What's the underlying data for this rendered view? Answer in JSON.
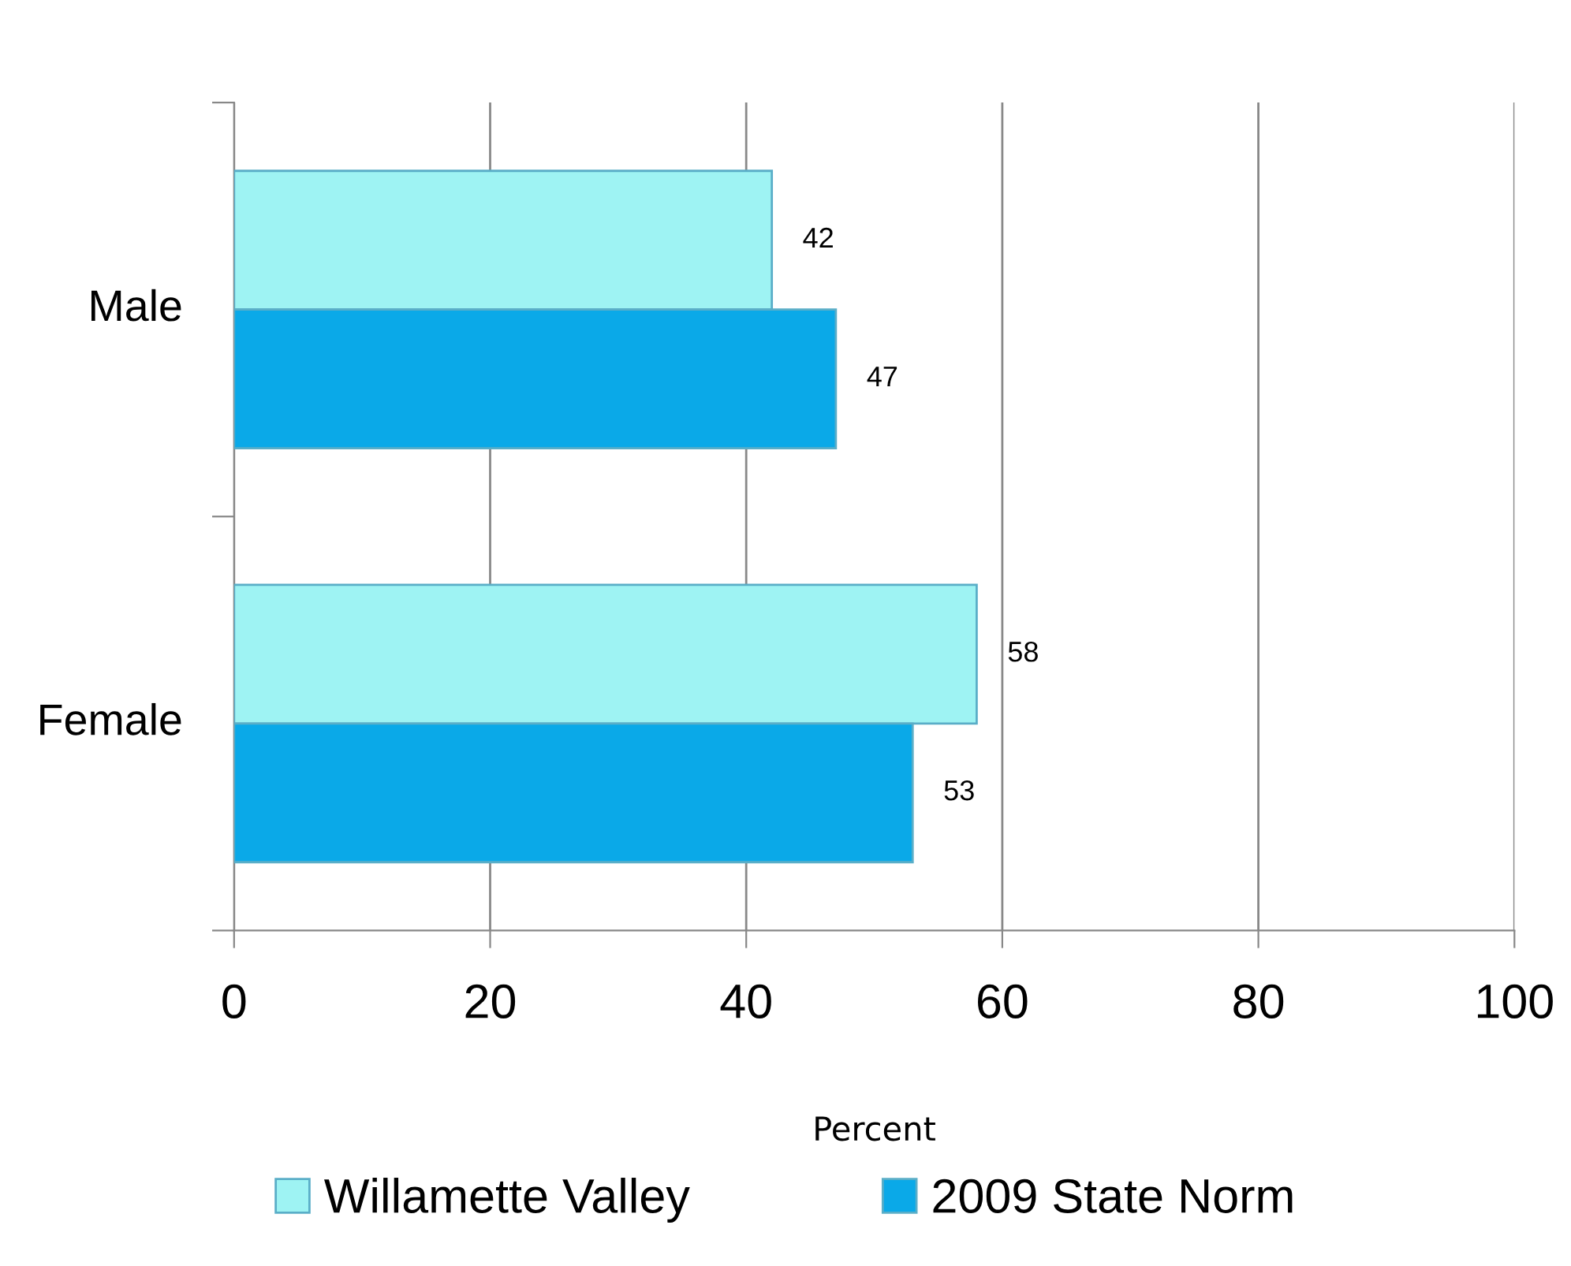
{
  "chart_data": {
    "type": "bar",
    "orientation": "horizontal",
    "categories": [
      "Male",
      "Female"
    ],
    "series": [
      {
        "name": "Willamette Valley",
        "color": "#9ef3f3",
        "values": [
          42,
          58
        ]
      },
      {
        "name": "2009 State Norm",
        "color": "#0aa9e8",
        "values": [
          47,
          53
        ]
      }
    ],
    "xlabel": "Percent",
    "xlim": [
      0,
      100
    ],
    "xticks": [
      0,
      20,
      40,
      60,
      80,
      100
    ],
    "grid": "x",
    "legend": "bottom",
    "data_labels": true
  }
}
